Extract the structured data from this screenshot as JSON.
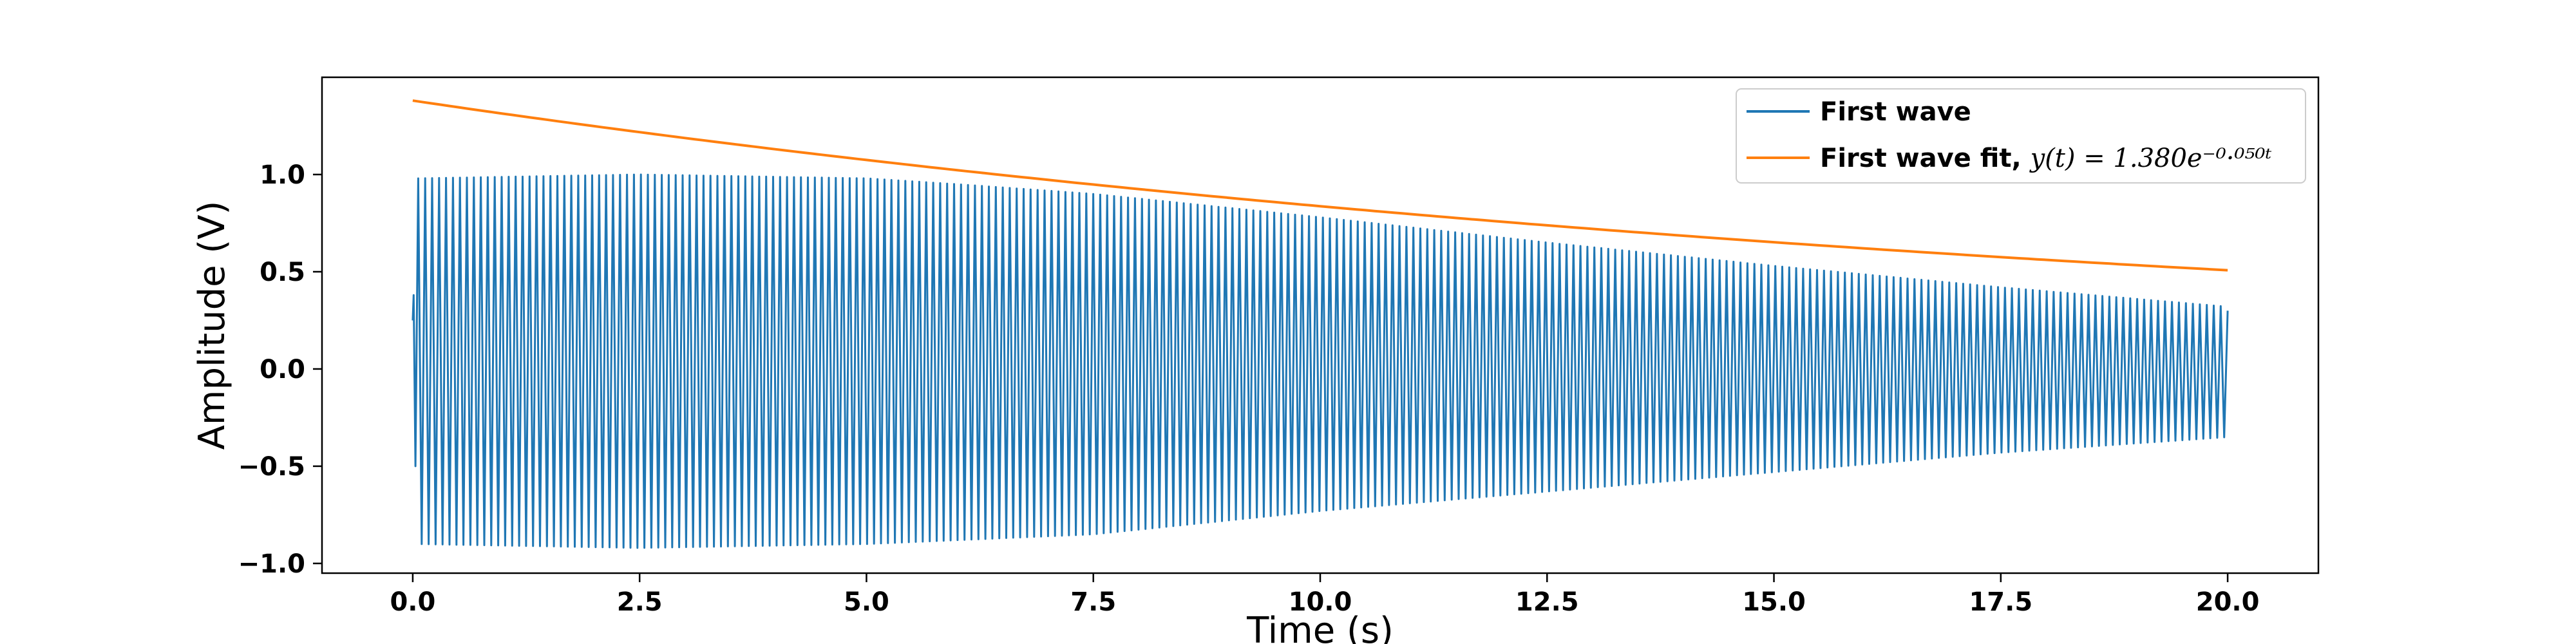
{
  "chart_data": {
    "type": "line",
    "title": "",
    "xlabel": "Time (s)",
    "ylabel": "Amplitude (V)",
    "xlim": [
      -1.0,
      21.0
    ],
    "ylim": [
      -1.05,
      1.5
    ],
    "xticks": [
      0.0,
      2.5,
      5.0,
      7.5,
      10.0,
      12.5,
      15.0,
      17.5,
      20.0
    ],
    "xtick_labels": [
      "0.0",
      "2.5",
      "5.0",
      "7.5",
      "10.0",
      "12.5",
      "15.0",
      "17.5",
      "20.0"
    ],
    "yticks": [
      -1.0,
      -0.5,
      0.0,
      0.5,
      1.0
    ],
    "ytick_labels": [
      "−1.0",
      "−0.5",
      "0.0",
      "0.5",
      "1.0"
    ],
    "grid": false,
    "legend_position": "top-right",
    "series": [
      {
        "name": "First wave",
        "color": "#1f77b4",
        "kind": "oscillation",
        "t_range": [
          0.0,
          20.0
        ],
        "oscillation_count": 260,
        "upper_envelope": {
          "t": [
            0.05,
            2.5,
            5.0,
            6.0,
            7.5,
            10.0,
            12.5,
            15.0,
            17.5,
            20.0
          ],
          "v": [
            0.98,
            1.0,
            0.98,
            0.95,
            0.9,
            0.78,
            0.65,
            0.53,
            0.42,
            0.32
          ]
        },
        "lower_envelope": {
          "t": [
            0.05,
            2.5,
            5.0,
            7.5,
            10.0,
            12.5,
            15.0,
            17.5,
            20.0
          ],
          "v": [
            -0.9,
            -0.92,
            -0.9,
            -0.85,
            -0.73,
            -0.63,
            -0.53,
            -0.43,
            -0.35
          ]
        }
      },
      {
        "name": "First wave fit, ",
        "formula": "y(t) = 1.380e⁻⁰·⁰⁵⁰ᵗ",
        "color": "#ff7f0e",
        "kind": "exponential",
        "amplitude": 1.38,
        "decay_rate": 0.05,
        "t_range": [
          0.0,
          20.0
        ]
      }
    ]
  }
}
